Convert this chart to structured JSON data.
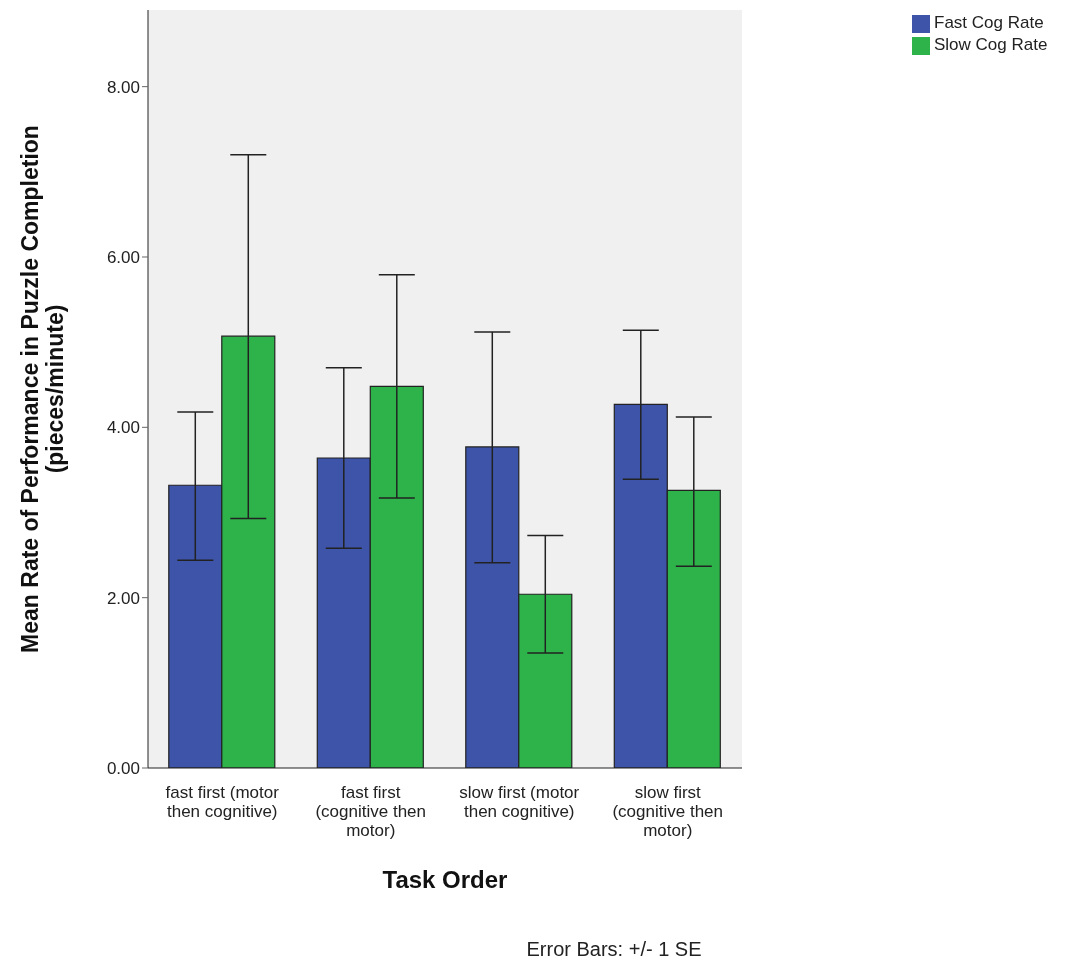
{
  "chart_data": {
    "type": "bar",
    "xlabel": "Task Order",
    "ylabel": "Mean Rate of Performance in Puzzle Completion (pieces/minute)",
    "categories": [
      "fast first (motor then cognitive)",
      "fast first (cognitive then motor)",
      "slow first (motor then cognitive)",
      "slow first (cognitive then motor)"
    ],
    "series": [
      {
        "name": "Fast Cog Rate",
        "color": "#3d54a8",
        "values": [
          3.32,
          3.64,
          3.77,
          4.27
        ],
        "errors": [
          [
            2.44,
            4.18
          ],
          [
            2.58,
            4.7
          ],
          [
            2.41,
            5.12
          ],
          [
            3.39,
            5.14
          ]
        ]
      },
      {
        "name": "Slow Cog Rate",
        "color": "#2db34a",
        "values": [
          5.07,
          4.48,
          2.04,
          3.26
        ],
        "errors": [
          [
            2.93,
            7.2
          ],
          [
            3.17,
            5.79
          ],
          [
            1.35,
            2.73
          ],
          [
            2.37,
            4.12
          ]
        ]
      }
    ],
    "ylim": [
      0,
      8.9
    ],
    "yticks": [
      {
        "value": 0,
        "label": "0.00"
      },
      {
        "value": 2,
        "label": "2.00"
      },
      {
        "value": 4,
        "label": "4.00"
      },
      {
        "value": 6,
        "label": "6.00"
      },
      {
        "value": 8,
        "label": "8.00"
      }
    ],
    "grid": false,
    "legend": "top right",
    "annotations": [
      "Error Bars: +/- 1 SE"
    ]
  }
}
